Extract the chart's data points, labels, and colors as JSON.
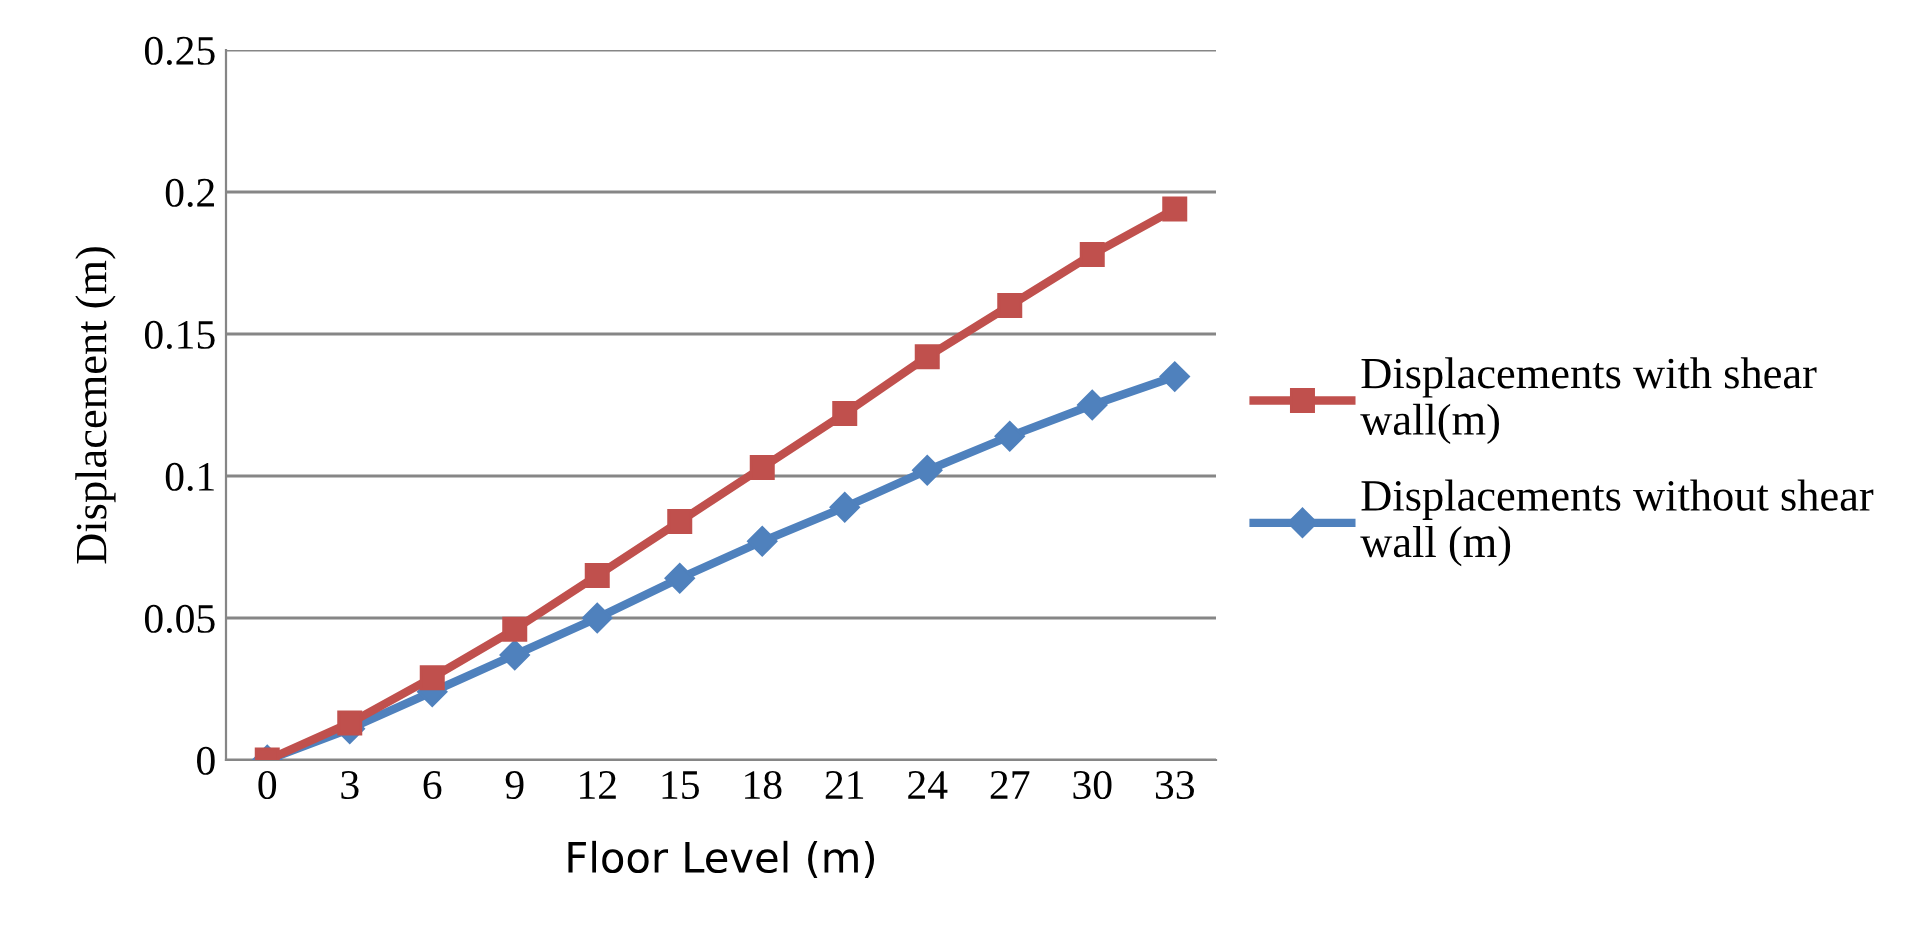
{
  "chart_data": {
    "type": "line",
    "xlabel": "Floor Level (m)",
    "ylabel": "Displacement (m)",
    "categories": [
      "0",
      "3",
      "6",
      "9",
      "12",
      "15",
      "18",
      "21",
      "24",
      "27",
      "30",
      "33"
    ],
    "series": [
      {
        "name": "Displacements with shear wall(m)",
        "color": "#c0504d",
        "marker": "square",
        "values": [
          0,
          0.013,
          0.029,
          0.046,
          0.065,
          0.084,
          0.103,
          0.122,
          0.142,
          0.16,
          0.178,
          0.194
        ]
      },
      {
        "name": "Displacements without shear wall (m)",
        "color": "#4f81bd",
        "marker": "diamond",
        "values": [
          0,
          0.011,
          0.024,
          0.037,
          0.05,
          0.064,
          0.077,
          0.089,
          0.102,
          0.114,
          0.125,
          0.135
        ]
      }
    ],
    "ylim": [
      0,
      0.25
    ],
    "yticks": [
      0,
      0.05,
      0.1,
      0.15,
      0.2,
      0.25
    ],
    "grid": "y",
    "legend": "right",
    "line_style": "solid"
  }
}
